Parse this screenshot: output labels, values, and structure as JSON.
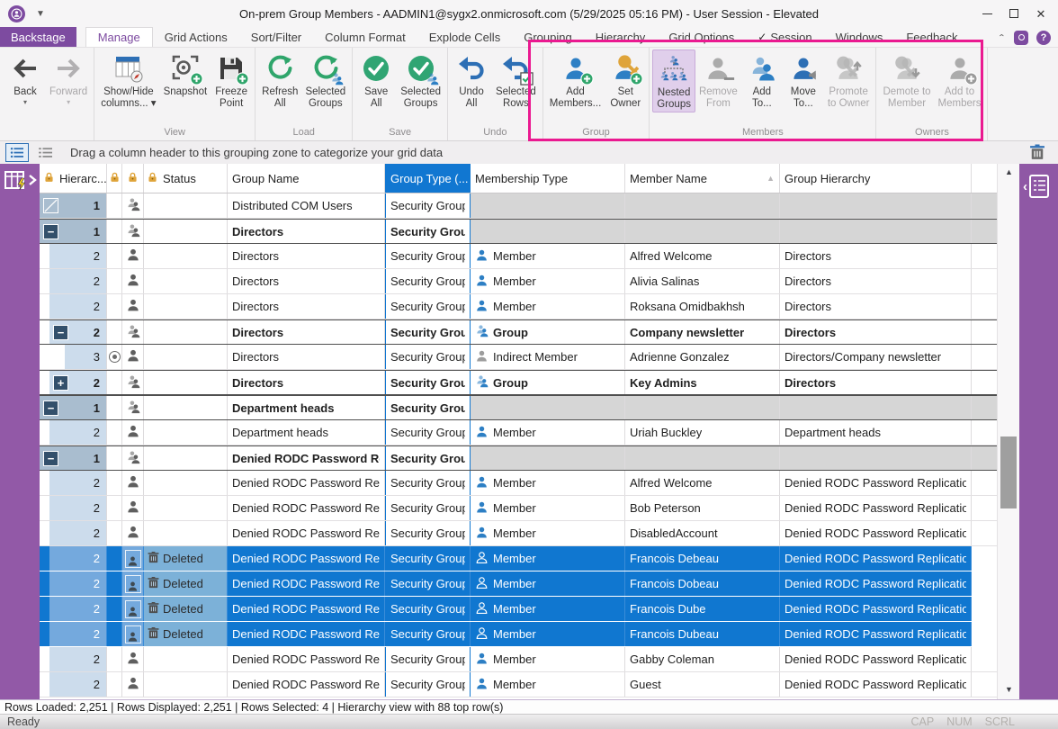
{
  "window": {
    "title": "On-prem Group Members - AADMIN1@sygx2.onmicrosoft.com (5/29/2025 05:16 PM) - User Session - Elevated",
    "controls": [
      "minimize",
      "maximize",
      "close"
    ]
  },
  "tabs": {
    "backstage_label": "Backstage",
    "items": [
      {
        "label": "Manage",
        "active": true
      },
      {
        "label": "Grid Actions"
      },
      {
        "label": "Sort/Filter"
      },
      {
        "label": "Column Format"
      },
      {
        "label": "Explode Cells"
      },
      {
        "label": "Grouping"
      },
      {
        "label": "Hierarchy"
      },
      {
        "label": "Grid Options"
      },
      {
        "label": "Session",
        "check": true
      },
      {
        "label": "Windows"
      },
      {
        "label": "Feedback"
      }
    ],
    "utility_icons": [
      "collapse-ribbon-chevron-icon",
      "app-badge-icon",
      "help-icon"
    ]
  },
  "ribbon": {
    "highlight_color": "#ea1990",
    "groups": [
      {
        "label": "",
        "buttons": [
          {
            "lines": [
              "Back"
            ],
            "icon": "back",
            "dropdown": "below"
          },
          {
            "lines": [
              "Forward"
            ],
            "icon": "forward",
            "dropdown": "below",
            "disabled": true
          }
        ]
      },
      {
        "label": "View",
        "buttons": [
          {
            "lines": [
              "Show/Hide",
              "columns..."
            ],
            "icon": "columns",
            "dropdown": "inline"
          },
          {
            "lines": [
              "Snapshot"
            ],
            "icon": "snapshot"
          },
          {
            "lines": [
              "Freeze",
              "Point"
            ],
            "icon": "freeze"
          }
        ]
      },
      {
        "label": "Load",
        "buttons": [
          {
            "lines": [
              "Refresh",
              "All"
            ],
            "icon": "refresh"
          },
          {
            "lines": [
              "Selected",
              "Groups"
            ],
            "icon": "refresh-groups"
          }
        ]
      },
      {
        "label": "Save",
        "buttons": [
          {
            "lines": [
              "Save",
              "All"
            ],
            "icon": "save"
          },
          {
            "lines": [
              "Selected",
              "Groups"
            ],
            "icon": "save-groups"
          }
        ]
      },
      {
        "label": "Undo",
        "buttons": [
          {
            "lines": [
              "Undo",
              "All"
            ],
            "icon": "undo"
          },
          {
            "lines": [
              "Selected",
              "Rows"
            ],
            "icon": "undo-rows"
          }
        ]
      },
      {
        "label": "Group",
        "buttons": [
          {
            "lines": [
              "Add",
              "Members..."
            ],
            "icon": "add-members"
          },
          {
            "lines": [
              "Set",
              "Owner"
            ],
            "icon": "set-owner"
          }
        ]
      },
      {
        "label": "Members",
        "buttons": [
          {
            "lines": [
              "Nested",
              "Groups"
            ],
            "icon": "nested-groups",
            "active": true
          },
          {
            "lines": [
              "Remove",
              "From"
            ],
            "icon": "remove-from",
            "disabled": true
          },
          {
            "lines": [
              "Add",
              "To..."
            ],
            "icon": "add-to"
          },
          {
            "lines": [
              "Move",
              "To..."
            ],
            "icon": "move-to"
          },
          {
            "lines": [
              "Promote",
              "to Owner"
            ],
            "icon": "promote-owner",
            "disabled": true
          }
        ]
      },
      {
        "label": "Owners",
        "buttons": [
          {
            "lines": [
              "Demote to",
              "Member"
            ],
            "icon": "demote-member",
            "disabled": true
          },
          {
            "lines": [
              "Add to",
              "Members"
            ],
            "icon": "add-to-members",
            "disabled": true
          }
        ]
      }
    ]
  },
  "grouping_bar": {
    "text": "Drag a column header to this grouping zone to categorize your grid data",
    "toggle_icons": [
      "grouping-list-selected-icon",
      "grouping-list-icon"
    ],
    "trash_icon": "delete-grouping-icon"
  },
  "grid": {
    "columns": [
      {
        "id": "hier",
        "label": "Hierarc...",
        "lock": true
      },
      {
        "id": "n1",
        "label": "",
        "lock": true
      },
      {
        "id": "n2",
        "label": "",
        "lock": true
      },
      {
        "id": "status",
        "label": "Status",
        "lock": true
      },
      {
        "id": "name",
        "label": "Group Name"
      },
      {
        "id": "type",
        "label": "Group Type (...",
        "selected": true
      },
      {
        "id": "mtype",
        "label": "Membership Type"
      },
      {
        "id": "member",
        "label": "Member Name",
        "sort": "asc"
      },
      {
        "id": "ghier",
        "label": "Group Hierarchy"
      }
    ],
    "rows": [
      {
        "lvl": 1,
        "exp": "slash",
        "icon": "group",
        "name": "Distributed COM Users",
        "type": "Security Group",
        "gray": true
      },
      {
        "lvl": 1,
        "exp": "minus",
        "icon": "group",
        "name": "Directors",
        "type": "Security Group",
        "bold": true,
        "gray": true
      },
      {
        "lvl": 2,
        "icon": "person",
        "name": "Directors",
        "type": "Security Group",
        "mticon": "member",
        "mtype": "Member",
        "member": "Alfred Welcome",
        "ghier": "Directors"
      },
      {
        "lvl": 2,
        "icon": "person",
        "name": "Directors",
        "type": "Security Group",
        "mticon": "member",
        "mtype": "Member",
        "member": "Alivia Salinas",
        "ghier": "Directors"
      },
      {
        "lvl": 2,
        "icon": "person",
        "name": "Directors",
        "type": "Security Group",
        "mticon": "member",
        "mtype": "Member",
        "member": "Roksana Omidbakhsh",
        "ghier": "Directors"
      },
      {
        "lvl": 2,
        "exp": "minus",
        "icon": "group",
        "name": "Directors",
        "type": "Security Group",
        "mticon": "group",
        "mtype": "Group",
        "member": "Company newsletter",
        "ghier": "Directors",
        "bold": true
      },
      {
        "lvl": 3,
        "exp": "radio",
        "icon": "person",
        "name": "Directors",
        "type": "Security Group",
        "mticon": "indirect",
        "mtype": "Indirect Member",
        "member": "Adrienne Gonzalez",
        "ghier": "Directors/Company newsletter"
      },
      {
        "lvl": 2,
        "exp": "plus",
        "icon": "group",
        "name": "Directors",
        "type": "Security Group",
        "mticon": "group",
        "mtype": "Group",
        "member": "Key Admins",
        "ghier": "Directors",
        "bold": true
      },
      {
        "lvl": 1,
        "exp": "minus",
        "icon": "group",
        "name": "Department heads",
        "type": "Security Group",
        "bold": true,
        "gray": true
      },
      {
        "lvl": 2,
        "icon": "person",
        "name": "Department heads",
        "type": "Security Group",
        "mticon": "member",
        "mtype": "Member",
        "member": "Uriah Buckley",
        "ghier": "Department heads"
      },
      {
        "lvl": 1,
        "exp": "minus",
        "icon": "group",
        "name": "Denied RODC Password Rep",
        "type": "Security Group",
        "bold": true,
        "gray": true
      },
      {
        "lvl": 2,
        "icon": "person",
        "name": "Denied RODC Password Repl",
        "type": "Security Group",
        "mticon": "member",
        "mtype": "Member",
        "member": "Alfred Welcome",
        "ghier": "Denied RODC Password Replication ("
      },
      {
        "lvl": 2,
        "icon": "person",
        "name": "Denied RODC Password Repl",
        "type": "Security Group",
        "mticon": "member",
        "mtype": "Member",
        "member": "Bob Peterson",
        "ghier": "Denied RODC Password Replication ("
      },
      {
        "lvl": 2,
        "icon": "person",
        "name": "Denied RODC Password Repl",
        "type": "Security Group",
        "mticon": "member",
        "mtype": "Member",
        "member": "DisabledAccount",
        "ghier": "Denied RODC Password Replication ("
      },
      {
        "lvl": 2,
        "icon": "person-box",
        "status": "Deleted",
        "selected": true,
        "name": "Denied RODC Password Repl",
        "type": "Security Group",
        "mticon": "member-white",
        "mtype": "Member",
        "member": "Francois Debeau",
        "ghier": "Denied RODC Password Replication ("
      },
      {
        "lvl": 2,
        "icon": "person-box",
        "status": "Deleted",
        "selected": true,
        "name": "Denied RODC Password Repl",
        "type": "Security Group",
        "mticon": "member-white",
        "mtype": "Member",
        "member": "Francois Dobeau",
        "ghier": "Denied RODC Password Replication ("
      },
      {
        "lvl": 2,
        "icon": "person-box",
        "status": "Deleted",
        "selected": true,
        "name": "Denied RODC Password Repl",
        "type": "Security Group",
        "mticon": "member-white",
        "mtype": "Member",
        "member": "Francois Dube",
        "ghier": "Denied RODC Password Replication ("
      },
      {
        "lvl": 2,
        "icon": "person-box",
        "status": "Deleted",
        "selected": true,
        "name": "Denied RODC Password Repl",
        "type": "Security Group",
        "mticon": "member-white",
        "mtype": "Member",
        "member": "Francois Dubeau",
        "ghier": "Denied RODC Password Replication ("
      },
      {
        "lvl": 2,
        "icon": "person",
        "name": "Denied RODC Password Repl",
        "type": "Security Group",
        "mticon": "member",
        "mtype": "Member",
        "member": "Gabby Coleman",
        "ghier": "Denied RODC Password Replication ("
      },
      {
        "lvl": 2,
        "icon": "person",
        "name": "Denied RODC Password Repl",
        "type": "Security Group",
        "mticon": "member",
        "mtype": "Member",
        "member": "Guest",
        "ghier": "Denied RODC Password Replication ("
      }
    ]
  },
  "status": {
    "line1": "Rows Loaded: 2,251 | Rows Displayed: 2,251 | Rows Selected: 4 | Hierarchy view with 88 top row(s)",
    "line2": "Ready",
    "keys": [
      "CAP",
      "NUM",
      "SCRL"
    ]
  },
  "colors": {
    "brand_purple": "#7d4ba0",
    "selection_blue": "#1077d0",
    "header_selected_blue": "#1177d1",
    "highlight_magenta": "#ea1990",
    "success_green": "#2fa56b",
    "icon_blue": "#2d7fc4",
    "lock_gold": "#dfa43a"
  }
}
